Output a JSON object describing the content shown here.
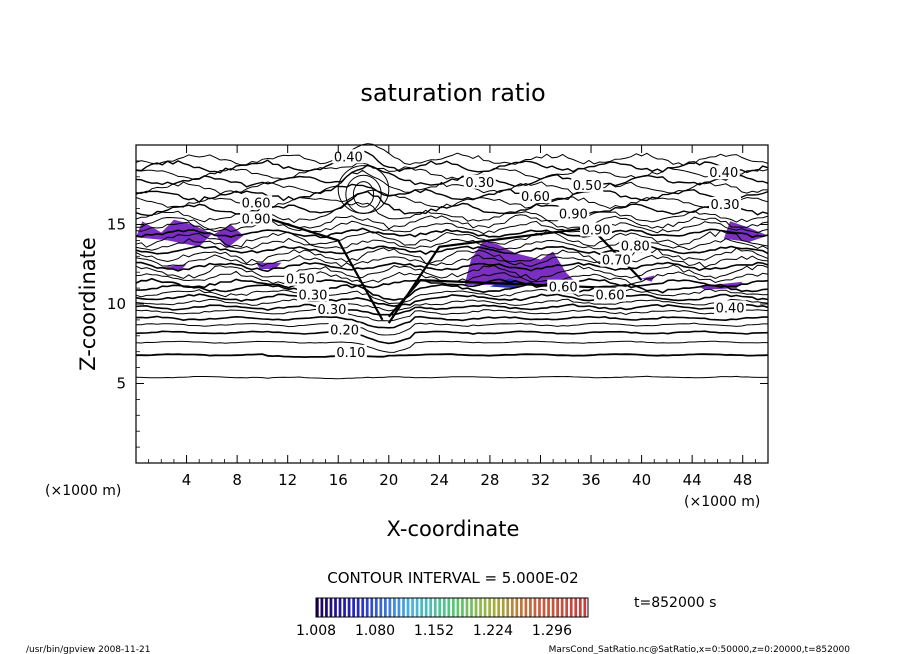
{
  "chart_data": {
    "type": "contour",
    "title": "saturation ratio",
    "xlabel": "X-coordinate",
    "ylabel": "Z-coordinate",
    "x_unit": "(×1000 m)",
    "y_unit": "(×1000 m)",
    "xlim": [
      0,
      50
    ],
    "ylim": [
      0,
      20
    ],
    "x_ticks": [
      4,
      8,
      12,
      16,
      20,
      24,
      28,
      32,
      36,
      40,
      44,
      48
    ],
    "y_ticks": [
      5,
      10,
      15
    ],
    "contour_labels": [
      {
        "text": "0.40",
        "x": 16.8,
        "z": 19.1
      },
      {
        "text": "0.30",
        "x": 27.2,
        "z": 17.5
      },
      {
        "text": "0.40",
        "x": 46.5,
        "z": 18.1
      },
      {
        "text": "0.60",
        "x": 31.6,
        "z": 16.6
      },
      {
        "text": "0.50",
        "x": 35.7,
        "z": 17.3
      },
      {
        "text": "0.60",
        "x": 9.5,
        "z": 16.2
      },
      {
        "text": "0.90",
        "x": 9.5,
        "z": 15.2
      },
      {
        "text": "0.90",
        "x": 34.6,
        "z": 15.5
      },
      {
        "text": "0.90",
        "x": 36.4,
        "z": 14.5
      },
      {
        "text": "0.80",
        "x": 39.5,
        "z": 13.5
      },
      {
        "text": "0.70",
        "x": 38.0,
        "z": 12.6
      },
      {
        "text": "0.30",
        "x": 46.6,
        "z": 16.1
      },
      {
        "text": "0.60",
        "x": 33.8,
        "z": 10.9
      },
      {
        "text": "0.60",
        "x": 37.5,
        "z": 10.4
      },
      {
        "text": "0.40",
        "x": 47.0,
        "z": 9.6
      },
      {
        "text": "0.30",
        "x": 15.5,
        "z": 9.5
      },
      {
        "text": "0.20",
        "x": 16.5,
        "z": 8.2
      },
      {
        "text": "0.10",
        "x": 17.0,
        "z": 6.8
      },
      {
        "text": "0.30",
        "x": 14.0,
        "z": 10.4
      },
      {
        "text": "0.50",
        "x": 13.0,
        "z": 11.4
      }
    ],
    "contour_interval_text": "CONTOUR INTERVAL = 5.000E-02",
    "colorbar": {
      "ticks": [
        "1.008",
        "1.080",
        "1.152",
        "1.224",
        "1.296"
      ],
      "min": 1.008,
      "max": 1.34
    },
    "time_text": "t=852000 s",
    "shaded_regions_note_color": "#7a2fc0"
  },
  "footer": {
    "left": "/usr/bin/gpview   2008-11-21",
    "right": "MarsCond_SatRatio.nc@SatRatio,x=0:50000,z=0:20000,t=852000"
  },
  "colors": {
    "shading": "#7a2fc0",
    "shading_dark": "#2a2ab0"
  }
}
